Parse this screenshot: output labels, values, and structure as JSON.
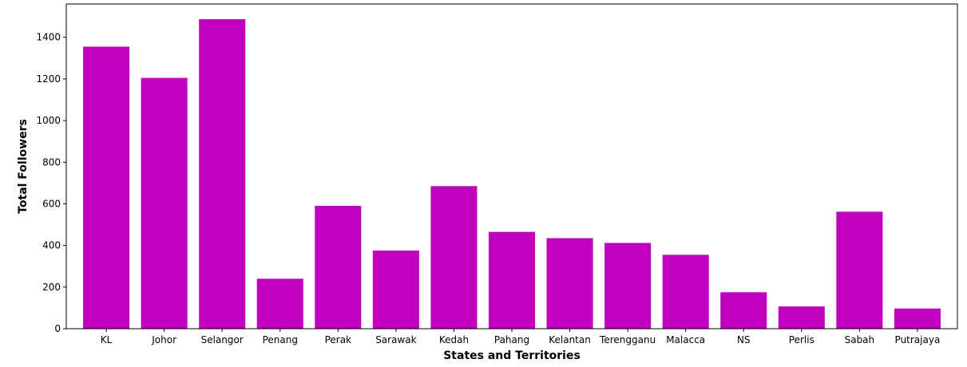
{
  "chart_data": {
    "type": "bar",
    "title": "",
    "xlabel": "States and Territories",
    "ylabel": "Total Followers",
    "categories": [
      "KL",
      "Johor",
      "Selangor",
      "Penang",
      "Perak",
      "Sarawak",
      "Kedah",
      "Pahang",
      "Kelantan",
      "Terengganu",
      "Malacca",
      "NS",
      "Perlis",
      "Sabah",
      "Putrajaya"
    ],
    "values": [
      1355,
      1205,
      1487,
      240,
      590,
      375,
      685,
      465,
      435,
      412,
      355,
      175,
      107,
      562,
      97
    ],
    "ylim": [
      0,
      1560
    ],
    "yticks": [
      0,
      200,
      400,
      600,
      800,
      1000,
      1200,
      1400
    ],
    "grid": false,
    "legend": "none",
    "bar_color": "#bf00bf"
  }
}
